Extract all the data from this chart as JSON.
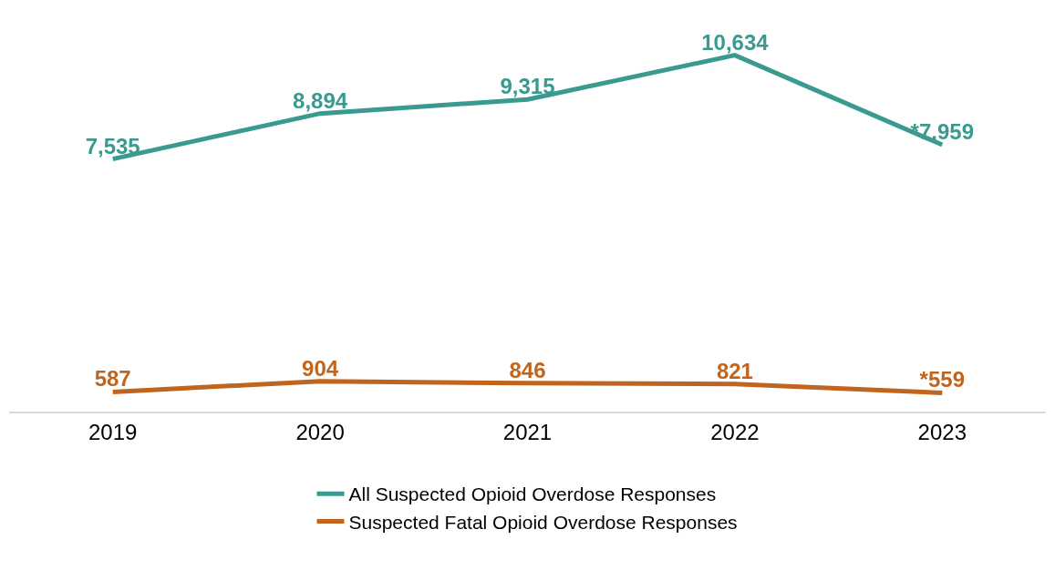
{
  "chart_data": {
    "type": "line",
    "categories": [
      "2019",
      "2020",
      "2021",
      "2022",
      "2023"
    ],
    "series": [
      {
        "name": "All Suspected Opioid Overdose Responses",
        "color": "#3a9a8f",
        "values": [
          7535,
          8894,
          9315,
          10634,
          7959
        ],
        "value_labels": [
          "7,535",
          "8,894",
          "9,315",
          "10,634",
          "*7,959"
        ]
      },
      {
        "name": "Suspected Fatal Opioid Overdose Responses",
        "color": "#c0651f",
        "values": [
          587,
          904,
          846,
          821,
          559
        ],
        "value_labels": [
          "587",
          "904",
          "846",
          "821",
          "*559"
        ]
      }
    ],
    "tick_labels": "x",
    "legend": "bottom",
    "marker": "none",
    "line_style": "solid"
  }
}
